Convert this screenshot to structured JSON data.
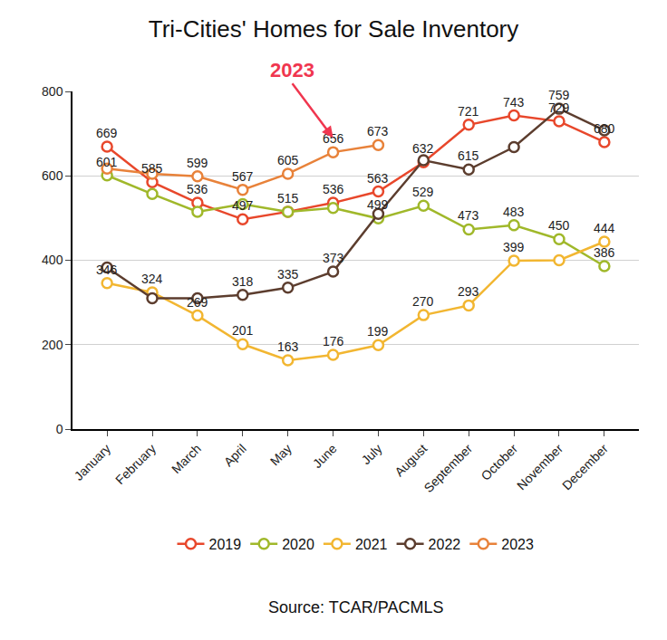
{
  "chart_data": {
    "type": "line",
    "title": "Tri-Cities' Homes for Sale Inventory",
    "source": "Source: TCAR/PACMLS",
    "categories": [
      "January",
      "February",
      "March",
      "April",
      "May",
      "June",
      "July",
      "August",
      "September",
      "October",
      "November",
      "December"
    ],
    "series": [
      {
        "name": "2019",
        "color": "#e8472b",
        "values": [
          669,
          585,
          536,
          497,
          515,
          536,
          563,
          632,
          721,
          743,
          729,
          680
        ],
        "value_labels": [
          "669",
          "585",
          "536",
          "497",
          "515",
          "536",
          "563",
          "632",
          "721",
          "743",
          "729",
          "680"
        ]
      },
      {
        "name": "2020",
        "color": "#a0b82a",
        "values": [
          601,
          557,
          515,
          533,
          515,
          524,
          499,
          529,
          473,
          483,
          450,
          386
        ],
        "value_labels": [
          "601",
          null,
          null,
          null,
          null,
          null,
          "499",
          "529",
          "473",
          "483",
          "450",
          "386"
        ]
      },
      {
        "name": "2021",
        "color": "#f2b631",
        "values": [
          346,
          324,
          269,
          201,
          163,
          176,
          199,
          270,
          293,
          399,
          400,
          444
        ],
        "value_labels": [
          "346",
          "324",
          "269",
          "201",
          "163",
          "176",
          "199",
          "270",
          "293",
          "399",
          null,
          "444"
        ]
      },
      {
        "name": "2022",
        "color": "#5c3d2e",
        "values": [
          383,
          310,
          310,
          318,
          335,
          373,
          510,
          637,
          615,
          668,
          759,
          708
        ],
        "value_labels": [
          null,
          null,
          null,
          "318",
          "335",
          "373",
          null,
          null,
          "615",
          null,
          "759",
          null
        ]
      },
      {
        "name": "2023",
        "color": "#e8823a",
        "values": [
          617,
          605,
          599,
          567,
          605,
          656,
          673,
          null,
          null,
          null,
          null,
          null
        ],
        "value_labels": [
          null,
          null,
          "599",
          "567",
          "605",
          "656",
          "673",
          null,
          null,
          null,
          null,
          null
        ]
      }
    ],
    "ylim": [
      0,
      800
    ],
    "yticks": [
      0,
      200,
      400,
      600,
      800
    ],
    "grid": true,
    "legend": "bottom",
    "data_labels": true,
    "marker": "circle",
    "annotations": [
      {
        "text": "2023",
        "color": "#f0364f"
      }
    ]
  }
}
